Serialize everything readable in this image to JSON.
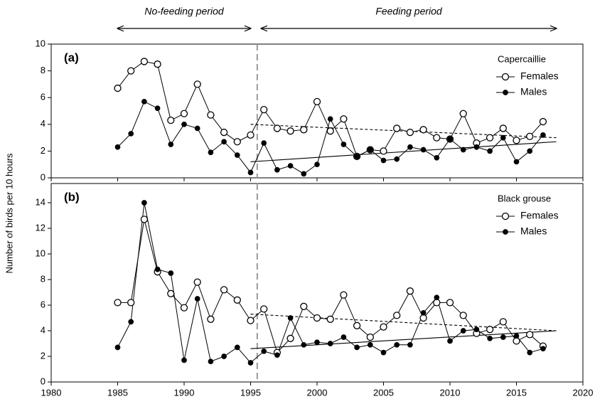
{
  "chart_data": [
    {
      "type": "line",
      "panel_label": "(a)",
      "legend_title": "Capercaillie",
      "ylabel": "Number of birds per 10 hours",
      "annotations": [
        {
          "text": "No-feeding period",
          "x": [
            1985,
            1995
          ]
        },
        {
          "text": "Feeding period",
          "x": [
            1995.8,
            2018
          ]
        }
      ],
      "vline": 1995.5,
      "x": [
        1985,
        1986,
        1987,
        1988,
        1989,
        1990,
        1991,
        1992,
        1993,
        1994,
        1995,
        1996,
        1997,
        1998,
        1999,
        2000,
        2001,
        2002,
        2003,
        2004,
        2005,
        2006,
        2007,
        2008,
        2009,
        2010,
        2011,
        2012,
        2013,
        2014,
        2015,
        2016,
        2017
      ],
      "series": [
        {
          "name": "Females",
          "color": "#000000",
          "marker": "open",
          "values": [
            6.7,
            8.0,
            8.7,
            8.5,
            4.3,
            4.8,
            7.0,
            4.7,
            3.4,
            2.7,
            3.2,
            5.1,
            3.7,
            3.5,
            3.6,
            5.7,
            3.5,
            4.4,
            1.6,
            2.1,
            2.0,
            3.7,
            3.4,
            3.6,
            3.0,
            2.9,
            4.8,
            2.6,
            3.0,
            3.7,
            2.8,
            3.1,
            4.2
          ]
        },
        {
          "name": "Males",
          "color": "#000000",
          "marker": "filled",
          "values": [
            2.3,
            3.3,
            5.7,
            5.2,
            2.5,
            4.0,
            3.7,
            1.9,
            2.7,
            1.7,
            0.4,
            2.6,
            0.6,
            0.9,
            0.3,
            1.0,
            4.4,
            2.5,
            1.6,
            2.1,
            1.3,
            1.4,
            2.3,
            2.1,
            1.5,
            2.9,
            2.1,
            2.3,
            2.0,
            3.0,
            1.2,
            2.0,
            3.2
          ]
        }
      ],
      "trends": [
        {
          "style": "dashed",
          "x": [
            1995,
            2018
          ],
          "values": [
            4.0,
            3.0
          ]
        },
        {
          "style": "solid",
          "x": [
            1995,
            2018
          ],
          "values": [
            1.2,
            2.7
          ]
        }
      ],
      "xlim": [
        1980,
        2020
      ],
      "xticks": [
        1980,
        1985,
        1990,
        1995,
        2000,
        2005,
        2010,
        2015,
        2020
      ],
      "ylim": [
        0,
        10
      ],
      "yticks": [
        0,
        2,
        4,
        6,
        8,
        10
      ]
    },
    {
      "type": "line",
      "panel_label": "(b)",
      "legend_title": "Black grouse",
      "vline": 1995.5,
      "x": [
        1985,
        1986,
        1987,
        1988,
        1989,
        1990,
        1991,
        1992,
        1993,
        1994,
        1995,
        1996,
        1997,
        1998,
        1999,
        2000,
        2001,
        2002,
        2003,
        2004,
        2005,
        2006,
        2007,
        2008,
        2009,
        2010,
        2011,
        2012,
        2013,
        2014,
        2015,
        2016,
        2017
      ],
      "series": [
        {
          "name": "Females",
          "color": "#000000",
          "marker": "open",
          "values": [
            6.2,
            6.2,
            12.7,
            8.6,
            6.9,
            5.8,
            7.8,
            4.9,
            7.2,
            6.4,
            4.8,
            5.7,
            2.3,
            3.4,
            5.9,
            5.0,
            4.9,
            6.8,
            4.4,
            3.5,
            4.3,
            5.2,
            7.1,
            5.0,
            6.2,
            6.2,
            5.2,
            3.8,
            4.1,
            4.7,
            3.2,
            3.7,
            2.8
          ]
        },
        {
          "name": "Males",
          "color": "#000000",
          "marker": "filled",
          "values": [
            2.7,
            4.7,
            14.0,
            8.8,
            8.5,
            1.7,
            6.5,
            1.6,
            2.0,
            2.7,
            1.5,
            2.4,
            2.1,
            5.0,
            2.9,
            3.1,
            3.0,
            3.5,
            2.7,
            2.9,
            2.3,
            2.9,
            2.9,
            5.4,
            6.6,
            3.2,
            4.0,
            4.1,
            3.4,
            3.5,
            3.6,
            2.3,
            2.6
          ]
        }
      ],
      "trends": [
        {
          "style": "dashed",
          "x": [
            1995,
            2018
          ],
          "values": [
            5.3,
            4.0
          ]
        },
        {
          "style": "solid",
          "x": [
            1995,
            2018
          ],
          "values": [
            2.6,
            4.0
          ]
        }
      ],
      "xlim": [
        1980,
        2020
      ],
      "xticks": [
        1980,
        1985,
        1990,
        1995,
        2000,
        2005,
        2010,
        2015,
        2020
      ],
      "ylim": [
        0,
        15.5
      ],
      "yticks": [
        0,
        2,
        4,
        6,
        8,
        10,
        12,
        14
      ]
    }
  ]
}
